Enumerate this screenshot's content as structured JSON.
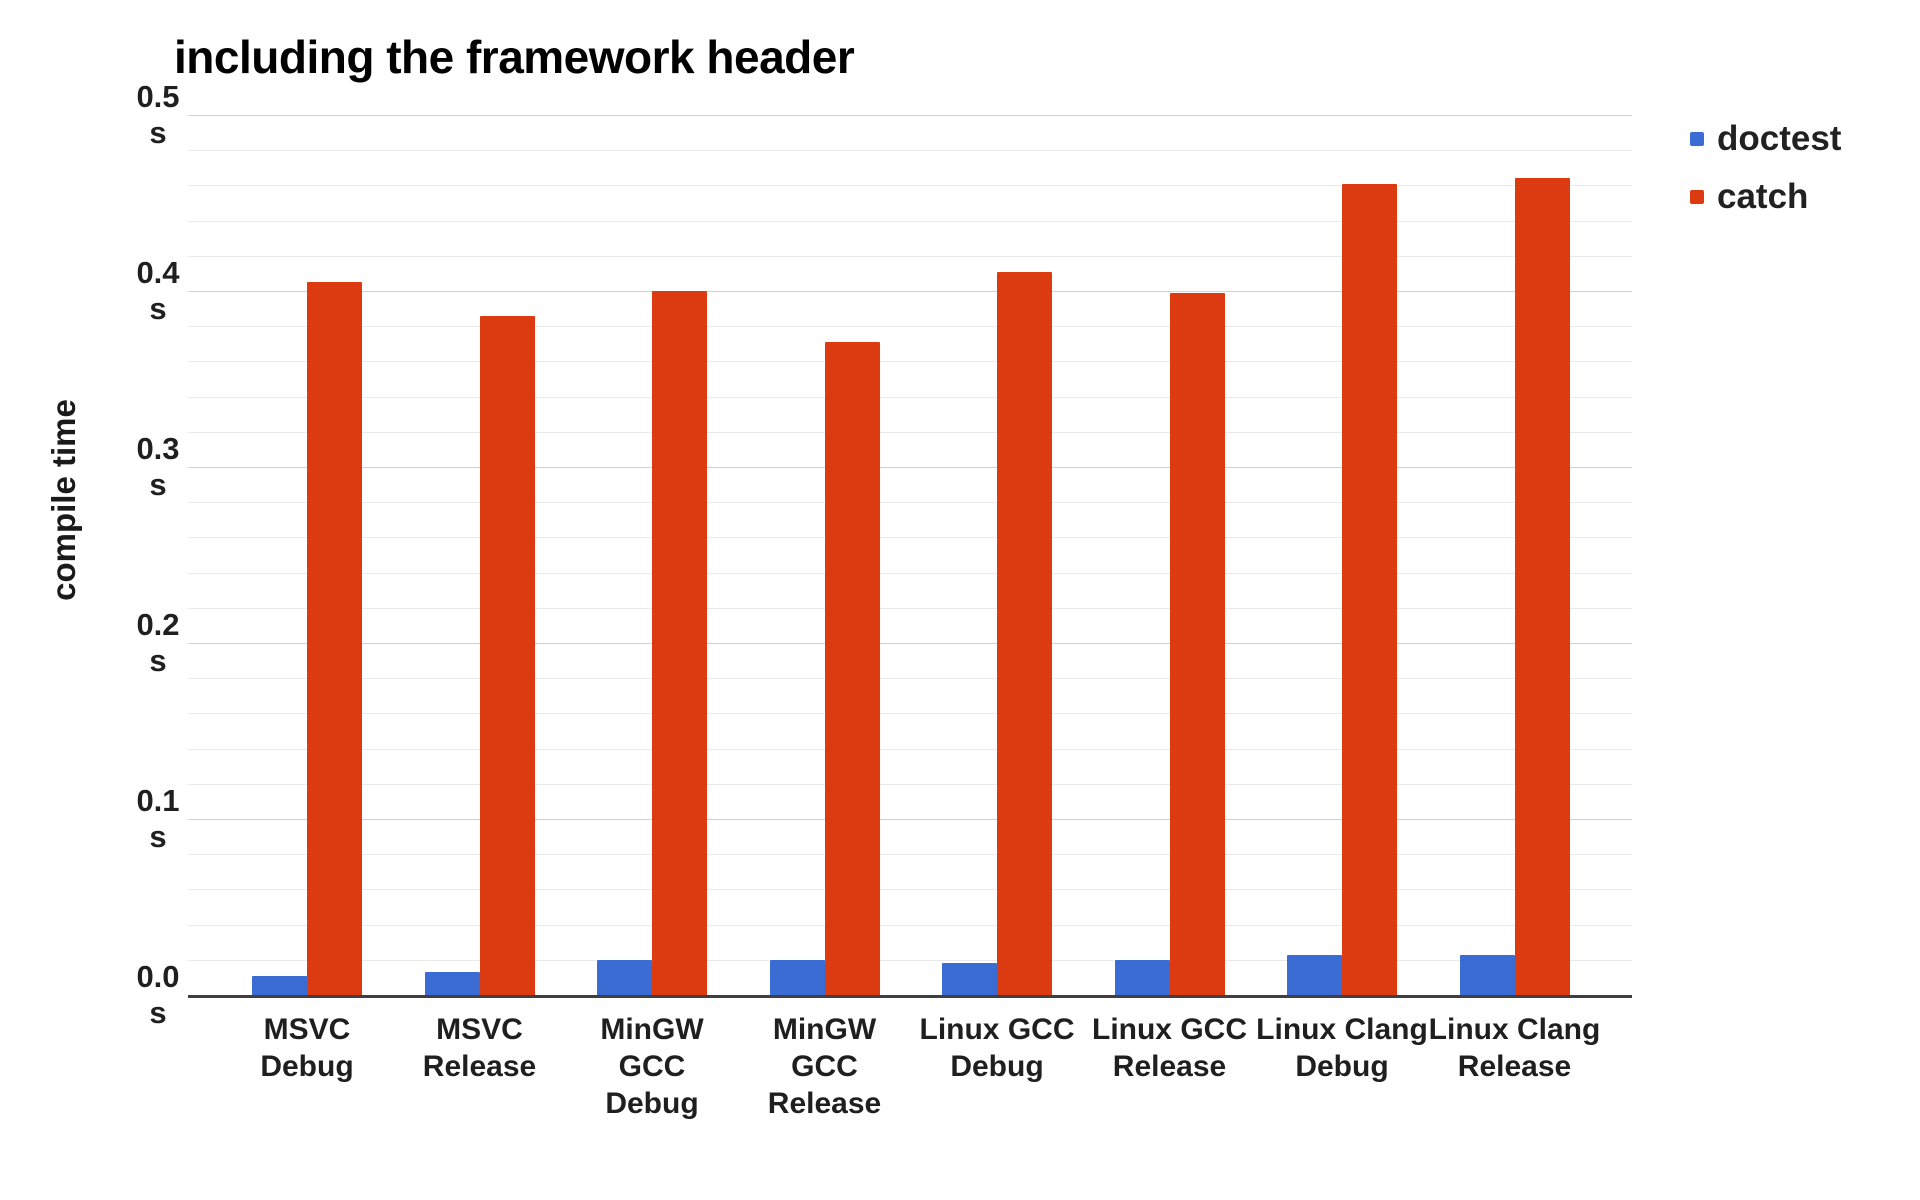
{
  "chart_data": {
    "type": "bar",
    "title": "including the framework header",
    "xlabel": "",
    "ylabel": "compile time",
    "unit": "s",
    "ylim": [
      0,
      0.5
    ],
    "yticks": [
      0.0,
      0.1,
      0.2,
      0.3,
      0.4,
      0.5
    ],
    "minor_grid_step": 0.02,
    "grid": true,
    "legend_position": "top-right",
    "categories": [
      [
        "MSVC",
        "Debug"
      ],
      [
        "MSVC",
        "Release"
      ],
      [
        "MinGW GCC",
        "Debug"
      ],
      [
        "MinGW GCC",
        "Release"
      ],
      [
        "Linux GCC",
        "Debug"
      ],
      [
        "Linux GCC",
        "Release"
      ],
      [
        "Linux Clang",
        "Debug"
      ],
      [
        "Linux Clang",
        "Release"
      ]
    ],
    "series": [
      {
        "name": "doctest",
        "color": "#3b6cd4",
        "values": [
          0.011,
          0.013,
          0.02,
          0.02,
          0.018,
          0.02,
          0.023,
          0.023
        ]
      },
      {
        "name": "catch",
        "color": "#dc3a10",
        "values": [
          0.405,
          0.386,
          0.4,
          0.371,
          0.411,
          0.399,
          0.461,
          0.464
        ]
      }
    ]
  }
}
